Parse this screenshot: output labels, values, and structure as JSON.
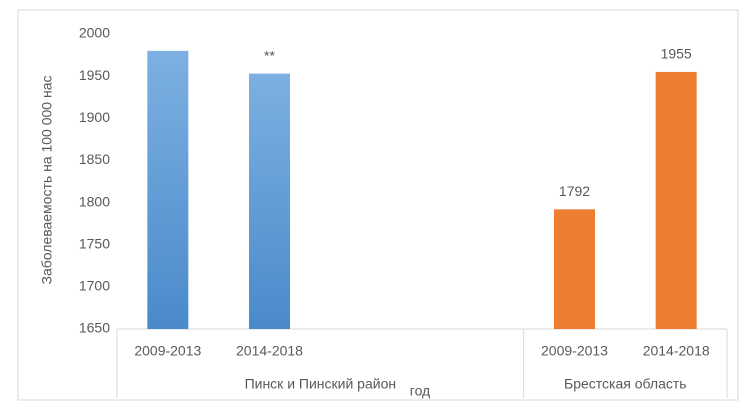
{
  "chart_data": {
    "type": "bar",
    "y_label": "Заболеваемость на 100 000 нас",
    "x_label": "год",
    "groups": [
      {
        "label": "Пинск и Пинский район",
        "categories": [
          "2009-2013",
          "2014-2018",
          null,
          null
        ]
      },
      {
        "label": "Брестская область",
        "categories": [
          "2009-2013",
          "2014-2018"
        ]
      }
    ],
    "series": [
      {
        "color": "#5b9bd5",
        "values": [
          1980,
          1953,
          null,
          null,
          null,
          null
        ],
        "value_labels": [
          null,
          "**",
          null,
          null,
          null,
          null
        ]
      },
      {
        "color": "#ed7d31",
        "values": [
          null,
          null,
          null,
          null,
          1792,
          1955
        ]
      }
    ],
    "ylim": [
      1650,
      2000
    ],
    "yticks": [
      1650,
      1700,
      1750,
      1800,
      1850,
      1900,
      1950,
      2000
    ],
    "grid": false
  }
}
